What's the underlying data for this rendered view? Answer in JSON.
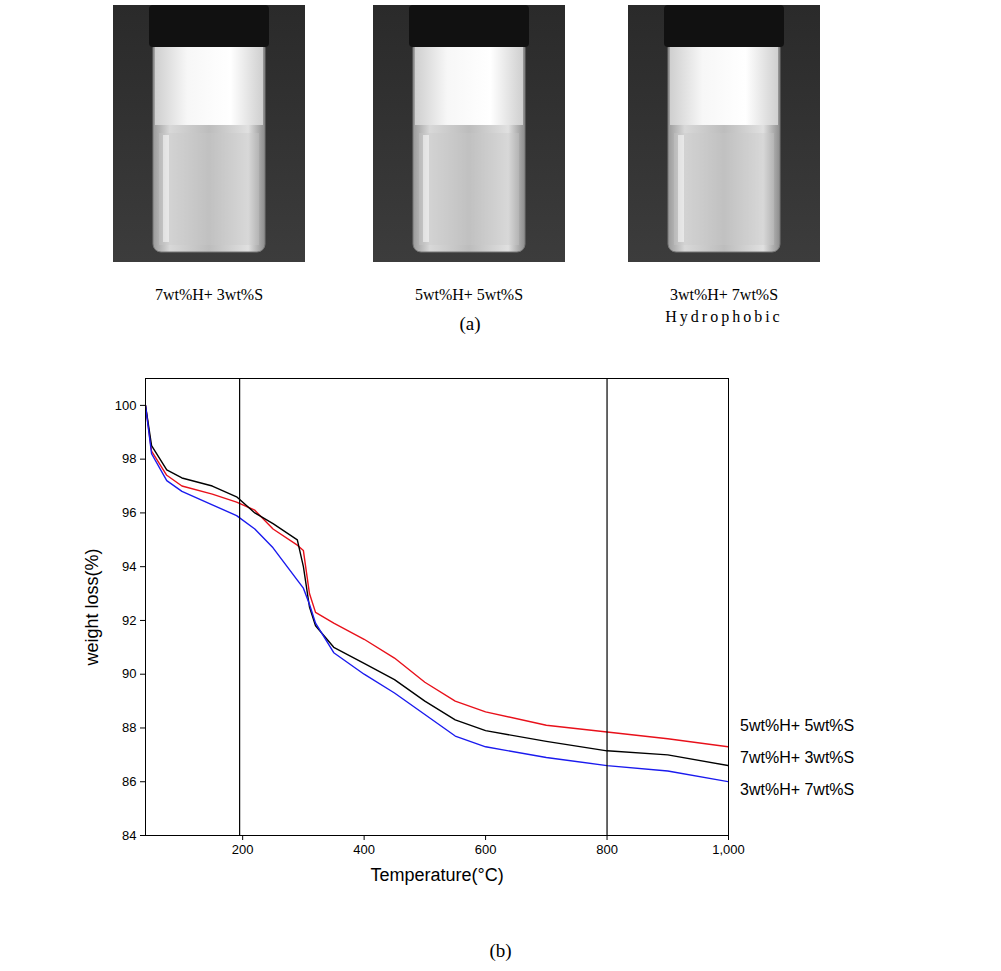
{
  "panel_a": {
    "label": "(a)",
    "captions": [
      [
        "7wt%H+ 3wt%S"
      ],
      [
        "5wt%H+ 5wt%S"
      ],
      [
        "3wt%H+ 7wt%S",
        "Hydrophobic"
      ]
    ]
  },
  "panel_b_label": "(b)",
  "chart_data": {
    "type": "line",
    "x_label": "Temperature(°C)",
    "y_label": "weight loss(%)",
    "x": [
      40,
      50,
      75,
      100,
      150,
      190,
      220,
      250,
      290,
      300,
      310,
      320,
      350,
      400,
      450,
      500,
      550,
      600,
      700,
      800,
      900,
      1000
    ],
    "series": [
      {
        "name": "5wt%H+ 5wt%S",
        "color": "#e8101a",
        "values": [
          100,
          98.3,
          97.4,
          97.0,
          96.7,
          96.4,
          96.1,
          95.4,
          94.8,
          94.6,
          93.0,
          92.3,
          91.9,
          91.3,
          90.6,
          89.7,
          89.0,
          88.6,
          88.1,
          87.85,
          87.6,
          87.3
        ]
      },
      {
        "name": "7wt%H+ 3wt%S",
        "color": "#000000",
        "values": [
          100,
          98.5,
          97.6,
          97.3,
          97.0,
          96.6,
          96.0,
          95.6,
          95.0,
          94.0,
          92.5,
          91.8,
          91.0,
          90.4,
          89.8,
          89.0,
          88.3,
          87.9,
          87.5,
          87.15,
          87.0,
          86.6
        ]
      },
      {
        "name": "3wt%H+ 7wt%S",
        "color": "#1a1aee",
        "values": [
          100,
          98.2,
          97.2,
          96.8,
          96.3,
          95.9,
          95.4,
          94.7,
          93.5,
          93.2,
          92.6,
          91.9,
          90.8,
          90.0,
          89.3,
          88.5,
          87.7,
          87.3,
          86.9,
          86.6,
          86.4,
          86.0
        ]
      }
    ],
    "reference_lines": [
      195,
      800
    ],
    "xlim": [
      40,
      1000
    ],
    "xticks": [
      200,
      400,
      600,
      800,
      1000
    ],
    "ylim": [
      84,
      101
    ],
    "yticks": [
      84,
      86,
      88,
      90,
      92,
      94,
      96,
      98,
      100
    ],
    "grid": false,
    "legend": "right"
  }
}
